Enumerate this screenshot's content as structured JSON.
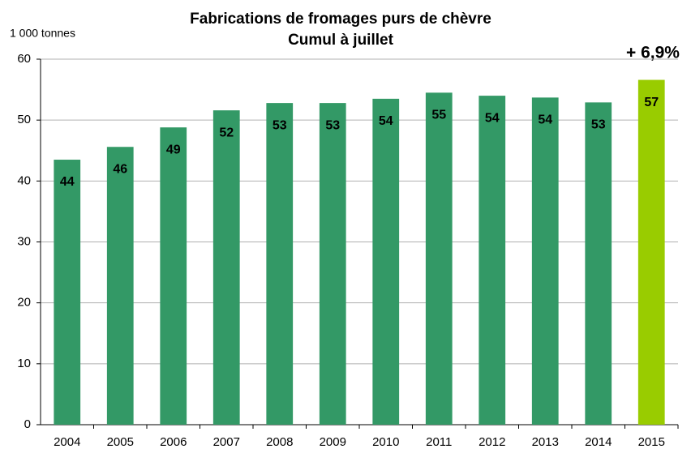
{
  "chart_data": {
    "type": "bar",
    "title": "Fabrications de fromages purs de chèvre",
    "subtitle": "Cumul à juillet",
    "y_label": "1 000 tonnes",
    "annotation": "+ 6,9%",
    "categories": [
      "2004",
      "2005",
      "2006",
      "2007",
      "2008",
      "2009",
      "2010",
      "2011",
      "2012",
      "2013",
      "2014",
      "2015"
    ],
    "values": [
      43.5,
      45.6,
      48.8,
      51.6,
      52.8,
      52.8,
      53.5,
      54.5,
      54.0,
      53.7,
      52.9,
      56.6
    ],
    "value_labels": [
      "44",
      "46",
      "49",
      "52",
      "53",
      "53",
      "54",
      "55",
      "54",
      "54",
      "53",
      "57"
    ],
    "colors": [
      "#339966",
      "#339966",
      "#339966",
      "#339966",
      "#339966",
      "#339966",
      "#339966",
      "#339966",
      "#339966",
      "#339966",
      "#339966",
      "#99cc00"
    ],
    "annotation_color": "#3a9a5c",
    "ylim": [
      0,
      60
    ],
    "yticks": [
      0,
      10,
      20,
      30,
      40,
      50,
      60
    ],
    "grid": true
  }
}
